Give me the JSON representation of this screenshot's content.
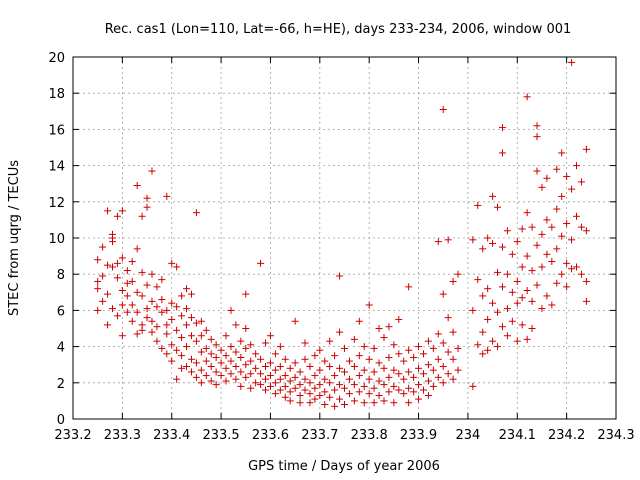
{
  "chart_data": {
    "type": "scatter",
    "title": "Rec. cas1 (Lon=110, Lat=-66, h=HE), days 233-234, 2006, window 001",
    "xlabel": "GPS time / Days of year 2006",
    "ylabel": "STEC from uqrg / TECUs",
    "xlim": [
      233.2,
      234.3
    ],
    "ylim": [
      0,
      20
    ],
    "xticks": [
      233.2,
      233.3,
      233.4,
      233.5,
      233.6,
      233.7,
      233.8,
      233.9,
      234.0,
      234.1,
      234.2,
      234.3
    ],
    "xtick_labels": [
      "233.2",
      "233.3",
      "233.4",
      "233.5",
      "233.6",
      "233.7",
      "233.8",
      "233.9",
      "234",
      "234.1",
      "234.2",
      "234.3"
    ],
    "yticks": [
      0,
      2,
      4,
      6,
      8,
      10,
      12,
      14,
      16,
      18,
      20
    ],
    "ytick_labels": [
      "0",
      "2",
      "4",
      "6",
      "8",
      "10",
      "12",
      "14",
      "16",
      "18",
      "20"
    ],
    "grid": true,
    "marker": "plus",
    "color": "#cc0000",
    "points": [
      [
        233.25,
        7.6
      ],
      [
        233.25,
        6.0
      ],
      [
        233.25,
        8.8
      ],
      [
        233.25,
        7.2
      ],
      [
        233.26,
        7.9
      ],
      [
        233.26,
        6.5
      ],
      [
        233.26,
        9.5
      ],
      [
        233.27,
        11.5
      ],
      [
        233.27,
        5.2
      ],
      [
        233.27,
        8.5
      ],
      [
        233.27,
        6.9
      ],
      [
        233.28,
        9.8
      ],
      [
        233.28,
        8.4
      ],
      [
        233.28,
        6.1
      ],
      [
        233.28,
        10.0
      ],
      [
        233.28,
        10.2
      ],
      [
        233.29,
        7.8
      ],
      [
        233.29,
        8.6
      ],
      [
        233.29,
        5.7
      ],
      [
        233.29,
        11.2
      ],
      [
        233.3,
        11.5
      ],
      [
        233.3,
        8.9
      ],
      [
        233.3,
        7.1
      ],
      [
        233.3,
        6.3
      ],
      [
        233.3,
        4.6
      ],
      [
        233.31,
        5.9
      ],
      [
        233.31,
        8.2
      ],
      [
        233.31,
        7.5
      ],
      [
        233.31,
        6.8
      ],
      [
        233.32,
        8.7
      ],
      [
        233.32,
        5.4
      ],
      [
        233.32,
        7.6
      ],
      [
        233.32,
        6.3
      ],
      [
        233.33,
        4.7
      ],
      [
        233.33,
        7.0
      ],
      [
        233.33,
        5.9
      ],
      [
        233.33,
        9.4
      ],
      [
        233.33,
        12.9
      ],
      [
        233.34,
        11.2
      ],
      [
        233.34,
        6.8
      ],
      [
        233.34,
        8.1
      ],
      [
        233.34,
        5.2
      ],
      [
        233.34,
        4.9
      ],
      [
        233.35,
        12.2
      ],
      [
        233.35,
        11.7
      ],
      [
        233.35,
        7.4
      ],
      [
        233.35,
        6.1
      ],
      [
        233.35,
        5.6
      ],
      [
        233.36,
        13.7
      ],
      [
        233.36,
        8.0
      ],
      [
        233.36,
        6.5
      ],
      [
        233.36,
        4.8
      ],
      [
        233.36,
        5.4
      ],
      [
        233.37,
        7.3
      ],
      [
        233.37,
        6.2
      ],
      [
        233.37,
        5.1
      ],
      [
        233.37,
        4.3
      ],
      [
        233.38,
        7.7
      ],
      [
        233.38,
        6.6
      ],
      [
        233.38,
        5.9
      ],
      [
        233.38,
        3.9
      ],
      [
        233.39,
        12.3
      ],
      [
        233.39,
        6.0
      ],
      [
        233.39,
        5.2
      ],
      [
        233.39,
        4.7
      ],
      [
        233.39,
        3.6
      ],
      [
        233.4,
        8.6
      ],
      [
        233.4,
        6.4
      ],
      [
        233.4,
        5.5
      ],
      [
        233.4,
        4.1
      ],
      [
        233.4,
        3.2
      ],
      [
        233.41,
        8.4
      ],
      [
        233.41,
        6.2
      ],
      [
        233.41,
        4.9
      ],
      [
        233.41,
        3.8
      ],
      [
        233.41,
        2.2
      ],
      [
        233.42,
        6.8
      ],
      [
        233.42,
        5.7
      ],
      [
        233.42,
        4.5
      ],
      [
        233.42,
        3.5
      ],
      [
        233.42,
        2.8
      ],
      [
        233.43,
        7.2
      ],
      [
        233.43,
        6.1
      ],
      [
        233.43,
        5.2
      ],
      [
        233.43,
        4.0
      ],
      [
        233.43,
        2.9
      ],
      [
        233.44,
        6.9
      ],
      [
        233.44,
        5.6
      ],
      [
        233.44,
        4.6
      ],
      [
        233.44,
        3.3
      ],
      [
        233.44,
        2.6
      ],
      [
        233.45,
        11.4
      ],
      [
        233.45,
        5.3
      ],
      [
        233.45,
        4.3
      ],
      [
        233.45,
        3.1
      ],
      [
        233.45,
        2.3
      ],
      [
        233.46,
        5.4
      ],
      [
        233.46,
        4.6
      ],
      [
        233.46,
        3.7
      ],
      [
        233.46,
        2.7
      ],
      [
        233.46,
        2.0
      ],
      [
        233.47,
        4.9
      ],
      [
        233.47,
        3.9
      ],
      [
        233.47,
        3.2
      ],
      [
        233.47,
        2.4
      ],
      [
        233.48,
        4.4
      ],
      [
        233.48,
        3.6
      ],
      [
        233.48,
        2.9
      ],
      [
        233.48,
        2.1
      ],
      [
        233.49,
        4.1
      ],
      [
        233.49,
        3.4
      ],
      [
        233.49,
        2.6
      ],
      [
        233.49,
        1.9
      ],
      [
        233.5,
        3.8
      ],
      [
        233.5,
        3.1
      ],
      [
        233.5,
        2.4
      ],
      [
        233.51,
        4.6
      ],
      [
        233.51,
        3.5
      ],
      [
        233.51,
        2.8
      ],
      [
        233.51,
        2.1
      ],
      [
        233.52,
        6.0
      ],
      [
        233.52,
        4.0
      ],
      [
        233.52,
        3.2
      ],
      [
        233.52,
        2.5
      ],
      [
        233.53,
        5.2
      ],
      [
        233.53,
        3.7
      ],
      [
        233.53,
        2.9
      ],
      [
        233.53,
        2.2
      ],
      [
        233.54,
        4.3
      ],
      [
        233.54,
        3.4
      ],
      [
        233.54,
        2.6
      ],
      [
        233.54,
        1.8
      ],
      [
        233.55,
        6.9
      ],
      [
        233.55,
        5.0
      ],
      [
        233.55,
        3.9
      ],
      [
        233.55,
        3.0
      ],
      [
        233.55,
        2.3
      ],
      [
        233.56,
        4.1
      ],
      [
        233.56,
        3.2
      ],
      [
        233.56,
        2.5
      ],
      [
        233.56,
        1.7
      ],
      [
        233.57,
        3.6
      ],
      [
        233.57,
        2.8
      ],
      [
        233.57,
        2.0
      ],
      [
        233.58,
        8.6
      ],
      [
        233.58,
        3.3
      ],
      [
        233.58,
        2.5
      ],
      [
        233.58,
        1.9
      ],
      [
        233.59,
        4.2
      ],
      [
        233.59,
        2.9
      ],
      [
        233.59,
        2.2
      ],
      [
        233.59,
        1.6
      ],
      [
        233.6,
        4.6
      ],
      [
        233.6,
        3.1
      ],
      [
        233.6,
        2.4
      ],
      [
        233.6,
        1.8
      ],
      [
        233.61,
        3.6
      ],
      [
        233.61,
        2.7
      ],
      [
        233.61,
        2.0
      ],
      [
        233.61,
        1.4
      ],
      [
        233.62,
        4.0
      ],
      [
        233.62,
        2.9
      ],
      [
        233.62,
        2.2
      ],
      [
        233.62,
        1.6
      ],
      [
        233.63,
        3.3
      ],
      [
        233.63,
        2.4
      ],
      [
        233.63,
        1.8
      ],
      [
        233.63,
        1.2
      ],
      [
        233.64,
        2.8
      ],
      [
        233.64,
        2.1
      ],
      [
        233.64,
        1.5
      ],
      [
        233.64,
        1.0
      ],
      [
        233.65,
        5.4
      ],
      [
        233.65,
        3.1
      ],
      [
        233.65,
        2.3
      ],
      [
        233.65,
        1.7
      ],
      [
        233.66,
        2.6
      ],
      [
        233.66,
        1.9
      ],
      [
        233.66,
        1.3
      ],
      [
        233.66,
        0.9
      ],
      [
        233.67,
        4.2
      ],
      [
        233.67,
        3.3
      ],
      [
        233.67,
        2.2
      ],
      [
        233.67,
        1.6
      ],
      [
        233.68,
        2.9
      ],
      [
        233.68,
        2.0
      ],
      [
        233.68,
        1.4
      ],
      [
        233.68,
        0.9
      ],
      [
        233.69,
        3.5
      ],
      [
        233.69,
        2.4
      ],
      [
        233.69,
        1.7
      ],
      [
        233.69,
        1.1
      ],
      [
        233.7,
        3.8
      ],
      [
        233.7,
        2.7
      ],
      [
        233.7,
        1.9
      ],
      [
        233.7,
        1.3
      ],
      [
        233.71,
        3.2
      ],
      [
        233.71,
        2.2
      ],
      [
        233.71,
        1.5
      ],
      [
        233.71,
        0.8
      ],
      [
        233.72,
        4.3
      ],
      [
        233.72,
        2.9
      ],
      [
        233.72,
        2.0
      ],
      [
        233.72,
        1.2
      ],
      [
        233.73,
        3.5
      ],
      [
        233.73,
        2.4
      ],
      [
        233.73,
        1.6
      ],
      [
        233.73,
        0.7
      ],
      [
        233.74,
        7.9
      ],
      [
        233.74,
        4.8
      ],
      [
        233.74,
        2.8
      ],
      [
        233.74,
        1.9
      ],
      [
        233.74,
        1.1
      ],
      [
        233.75,
        3.9
      ],
      [
        233.75,
        2.6
      ],
      [
        233.75,
        1.7
      ],
      [
        233.75,
        0.8
      ],
      [
        233.76,
        3.2
      ],
      [
        233.76,
        2.2
      ],
      [
        233.76,
        1.4
      ],
      [
        233.77,
        4.4
      ],
      [
        233.77,
        2.9
      ],
      [
        233.77,
        1.9
      ],
      [
        233.77,
        1.0
      ],
      [
        233.78,
        5.4
      ],
      [
        233.78,
        3.5
      ],
      [
        233.78,
        2.4
      ],
      [
        233.78,
        1.5
      ],
      [
        233.79,
        4.0
      ],
      [
        233.79,
        2.7
      ],
      [
        233.79,
        1.8
      ],
      [
        233.79,
        0.9
      ],
      [
        233.8,
        6.3
      ],
      [
        233.8,
        3.3
      ],
      [
        233.8,
        2.2
      ],
      [
        233.8,
        1.4
      ],
      [
        233.81,
        3.9
      ],
      [
        233.81,
        2.6
      ],
      [
        233.81,
        1.7
      ],
      [
        233.81,
        0.9
      ],
      [
        233.82,
        5.0
      ],
      [
        233.82,
        3.1
      ],
      [
        233.82,
        2.1
      ],
      [
        233.82,
        1.3
      ],
      [
        233.83,
        4.5
      ],
      [
        233.83,
        2.8
      ],
      [
        233.83,
        1.9
      ],
      [
        233.83,
        1.0
      ],
      [
        233.84,
        5.1
      ],
      [
        233.84,
        3.4
      ],
      [
        233.84,
        2.3
      ],
      [
        233.84,
        1.5
      ],
      [
        233.85,
        4.1
      ],
      [
        233.85,
        2.7
      ],
      [
        233.85,
        1.8
      ],
      [
        233.85,
        0.9
      ],
      [
        233.86,
        5.5
      ],
      [
        233.86,
        3.6
      ],
      [
        233.86,
        2.5
      ],
      [
        233.86,
        1.6
      ],
      [
        233.87,
        3.2
      ],
      [
        233.87,
        2.2
      ],
      [
        233.87,
        1.4
      ],
      [
        233.88,
        7.3
      ],
      [
        233.88,
        3.8
      ],
      [
        233.88,
        2.6
      ],
      [
        233.88,
        1.7
      ],
      [
        233.88,
        0.9
      ],
      [
        233.89,
        3.4
      ],
      [
        233.89,
        2.3
      ],
      [
        233.89,
        1.5
      ],
      [
        233.9,
        4.0
      ],
      [
        233.9,
        2.8
      ],
      [
        233.9,
        1.9
      ],
      [
        233.9,
        1.1
      ],
      [
        233.91,
        3.6
      ],
      [
        233.91,
        2.5
      ],
      [
        233.91,
        1.6
      ],
      [
        233.92,
        4.3
      ],
      [
        233.92,
        3.0
      ],
      [
        233.92,
        2.1
      ],
      [
        233.92,
        1.3
      ],
      [
        233.93,
        3.9
      ],
      [
        233.93,
        2.7
      ],
      [
        233.93,
        1.8
      ],
      [
        233.94,
        9.8
      ],
      [
        233.94,
        4.7
      ],
      [
        233.94,
        3.3
      ],
      [
        233.94,
        2.3
      ],
      [
        233.95,
        17.1
      ],
      [
        233.95,
        6.9
      ],
      [
        233.95,
        4.2
      ],
      [
        233.95,
        2.9
      ],
      [
        233.95,
        2.0
      ],
      [
        233.96,
        9.9
      ],
      [
        233.96,
        5.6
      ],
      [
        233.96,
        3.7
      ],
      [
        233.96,
        2.5
      ],
      [
        233.97,
        7.6
      ],
      [
        233.97,
        4.8
      ],
      [
        233.97,
        3.3
      ],
      [
        233.97,
        2.2
      ],
      [
        233.98,
        8.0
      ],
      [
        233.98,
        3.9
      ],
      [
        233.98,
        2.7
      ],
      [
        234.01,
        9.9
      ],
      [
        234.01,
        6.0
      ],
      [
        234.01,
        1.8
      ],
      [
        234.02,
        11.8
      ],
      [
        234.02,
        7.7
      ],
      [
        234.02,
        4.1
      ],
      [
        234.03,
        9.4
      ],
      [
        234.03,
        6.8
      ],
      [
        234.03,
        4.8
      ],
      [
        234.03,
        3.6
      ],
      [
        234.04,
        10.0
      ],
      [
        234.04,
        7.2
      ],
      [
        234.04,
        5.5
      ],
      [
        234.04,
        3.8
      ],
      [
        234.05,
        12.3
      ],
      [
        234.05,
        9.7
      ],
      [
        234.05,
        6.4
      ],
      [
        234.05,
        4.3
      ],
      [
        234.06,
        11.7
      ],
      [
        234.06,
        8.1
      ],
      [
        234.06,
        5.9
      ],
      [
        234.06,
        4.0
      ],
      [
        234.07,
        16.1
      ],
      [
        234.07,
        14.7
      ],
      [
        234.07,
        9.5
      ],
      [
        234.07,
        7.3
      ],
      [
        234.07,
        5.1
      ],
      [
        234.08,
        10.4
      ],
      [
        234.08,
        8.0
      ],
      [
        234.08,
        6.1
      ],
      [
        234.08,
        4.6
      ],
      [
        234.09,
        9.1
      ],
      [
        234.09,
        7.0
      ],
      [
        234.09,
        5.4
      ],
      [
        234.1,
        9.8
      ],
      [
        234.1,
        7.6
      ],
      [
        234.1,
        6.4
      ],
      [
        234.1,
        4.3
      ],
      [
        234.11,
        10.5
      ],
      [
        234.11,
        8.4
      ],
      [
        234.11,
        6.7
      ],
      [
        234.11,
        5.2
      ],
      [
        234.12,
        17.8
      ],
      [
        234.12,
        11.4
      ],
      [
        234.12,
        9.0
      ],
      [
        234.12,
        7.1
      ],
      [
        234.12,
        4.4
      ],
      [
        234.13,
        10.6
      ],
      [
        234.13,
        8.2
      ],
      [
        234.13,
        6.5
      ],
      [
        234.13,
        5.0
      ],
      [
        234.14,
        16.2
      ],
      [
        234.14,
        15.6
      ],
      [
        234.14,
        13.7
      ],
      [
        234.14,
        9.6
      ],
      [
        234.14,
        7.4
      ],
      [
        234.15,
        12.8
      ],
      [
        234.15,
        10.2
      ],
      [
        234.15,
        8.4
      ],
      [
        234.15,
        6.1
      ],
      [
        234.16,
        13.3
      ],
      [
        234.16,
        11.0
      ],
      [
        234.16,
        9.1
      ],
      [
        234.16,
        6.8
      ],
      [
        234.17,
        10.6
      ],
      [
        234.17,
        8.7
      ],
      [
        234.17,
        6.3
      ],
      [
        234.18,
        13.8
      ],
      [
        234.18,
        11.6
      ],
      [
        234.18,
        9.4
      ],
      [
        234.18,
        7.5
      ],
      [
        234.19,
        14.7
      ],
      [
        234.19,
        12.3
      ],
      [
        234.19,
        10.1
      ],
      [
        234.19,
        8.0
      ],
      [
        234.2,
        13.4
      ],
      [
        234.2,
        10.8
      ],
      [
        234.2,
        8.6
      ],
      [
        234.2,
        7.3
      ],
      [
        234.21,
        19.7
      ],
      [
        234.21,
        12.7
      ],
      [
        234.21,
        9.9
      ],
      [
        234.21,
        8.3
      ],
      [
        234.22,
        14.0
      ],
      [
        234.22,
        11.2
      ],
      [
        234.22,
        8.4
      ],
      [
        234.23,
        13.1
      ],
      [
        234.23,
        10.6
      ],
      [
        234.23,
        8.0
      ],
      [
        234.24,
        14.9
      ],
      [
        234.24,
        10.4
      ],
      [
        234.24,
        7.6
      ],
      [
        234.24,
        6.5
      ]
    ]
  }
}
